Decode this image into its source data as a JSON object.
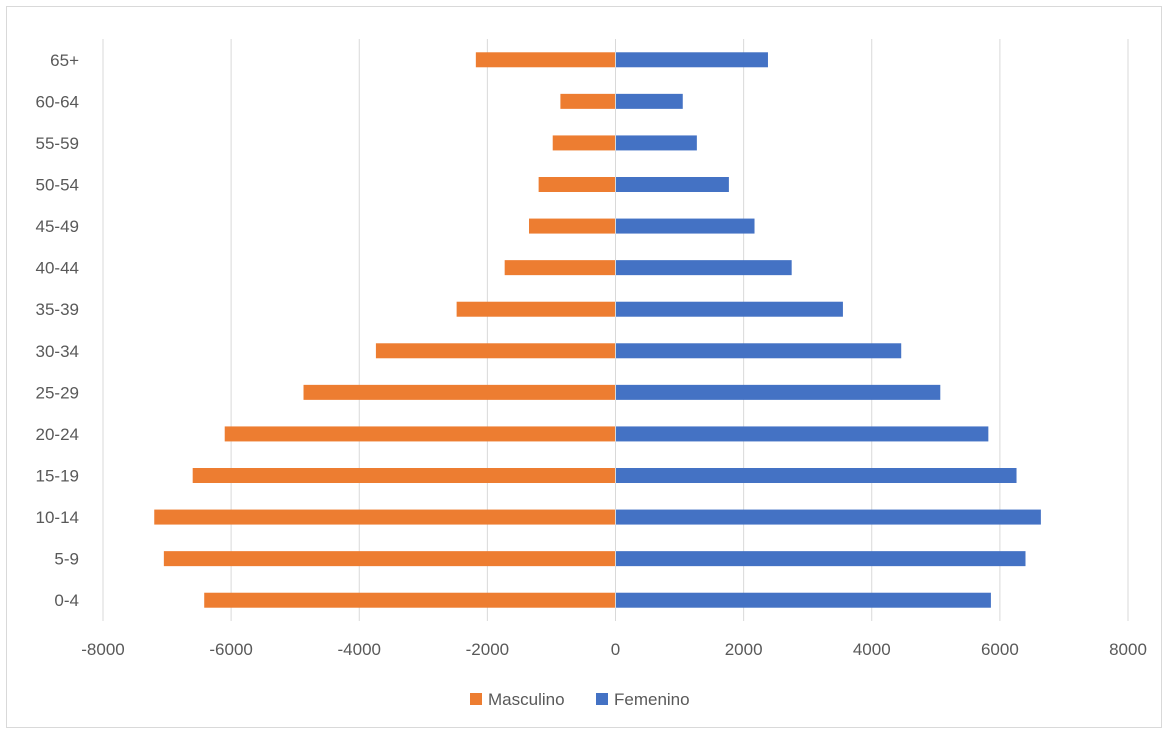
{
  "chart_data": {
    "type": "bar",
    "orientation": "horizontal",
    "categories": [
      "0-4",
      "5-9",
      "10-14",
      "15-19",
      "20-24",
      "25-29",
      "30-34",
      "35-39",
      "40-44",
      "45-49",
      "50-54",
      "55-59",
      "60-64",
      "65+"
    ],
    "series": [
      {
        "name": "Masculino",
        "color": "#ed7d31",
        "values": [
          -6420,
          -7050,
          -7200,
          -6600,
          -6100,
          -4870,
          -3740,
          -2480,
          -1730,
          -1350,
          -1200,
          -980,
          -860,
          -2180
        ]
      },
      {
        "name": "Femenino",
        "color": "#4472c4",
        "values": [
          5860,
          6400,
          6640,
          6260,
          5820,
          5070,
          4460,
          3550,
          2750,
          2170,
          1770,
          1270,
          1050,
          2380
        ]
      }
    ],
    "xlim": [
      -8000,
      8000
    ],
    "x_ticks": [
      "-8000",
      "-6000",
      "-4000",
      "-2000",
      "0",
      "2000",
      "4000",
      "6000",
      "8000"
    ],
    "grid": "vertical",
    "legend": "bottom",
    "title": "",
    "xlabel": "",
    "ylabel": ""
  }
}
